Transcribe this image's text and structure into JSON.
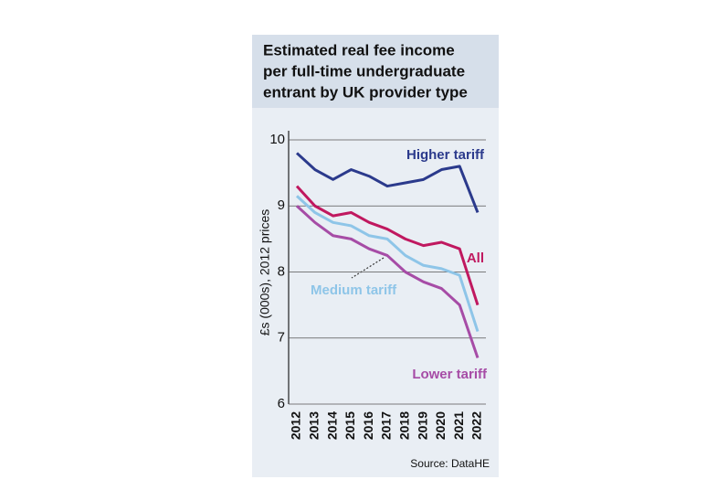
{
  "chart_data": {
    "type": "line",
    "title": [
      "Estimated real fee income",
      "per full-time undergraduate",
      "entrant by UK provider type"
    ],
    "y_label": "£s (000s),  2012 prices",
    "source": "Source: DataHE",
    "x": [
      "2012",
      "2013",
      "2014",
      "2015",
      "2016",
      "2017",
      "2018",
      "2019",
      "2020",
      "2021",
      "2022"
    ],
    "series": [
      {
        "name": "Higher tariff",
        "color": "#2b3a8c",
        "values": [
          9.8,
          9.55,
          9.4,
          9.55,
          9.45,
          9.3,
          9.35,
          9.4,
          9.55,
          9.6,
          8.9
        ]
      },
      {
        "name": "All",
        "color": "#c0185f",
        "values": [
          9.3,
          9.0,
          8.85,
          8.9,
          8.75,
          8.65,
          8.5,
          8.4,
          8.45,
          8.35,
          7.5
        ]
      },
      {
        "name": "Medium tariff",
        "color": "#8ec5e8",
        "values": [
          9.15,
          8.9,
          8.75,
          8.7,
          8.55,
          8.5,
          8.25,
          8.1,
          8.05,
          7.95,
          7.1
        ]
      },
      {
        "name": "Lower tariff",
        "color": "#a64ca6",
        "values": [
          9.0,
          8.75,
          8.55,
          8.5,
          8.35,
          8.25,
          8.0,
          7.85,
          7.75,
          7.5,
          6.7
        ]
      }
    ],
    "ylim": [
      6,
      10
    ],
    "yticks": [
      6,
      7,
      8,
      9,
      10
    ],
    "grid": true
  }
}
